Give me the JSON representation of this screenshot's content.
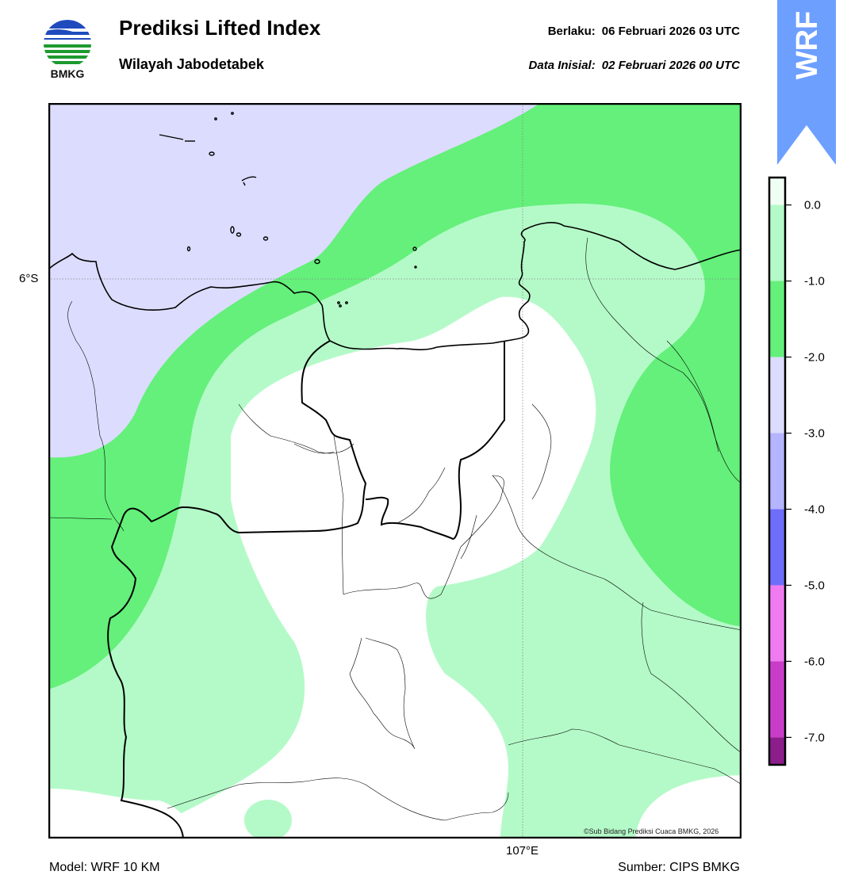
{
  "header": {
    "logo_text": "BMKG",
    "title": "Prediksi Lifted Index",
    "subtitle": "Wilayah Jabodetabek",
    "valid_label": "Berlaku:",
    "valid_value": "06 Februari 2026 03 UTC",
    "init_label": "Data Inisial:",
    "init_value": "02 Februari 2026 00 UTC"
  },
  "ribbon": {
    "text": "WRF",
    "color": "#6d9fff"
  },
  "map": {
    "lat_label": "6°S",
    "lon_label": "107°E",
    "copyright": "©Sub Bidang Prediksi Cuaca BMKG, 2026",
    "fill_colors": {
      "lavender": "#dcdcff",
      "green": "#64f07a",
      "light_green": "#b4fac8",
      "white": "#ffffff"
    }
  },
  "colorbar": {
    "ticks": [
      "0.0",
      "-1.0",
      "-2.0",
      "-3.0",
      "-4.0",
      "-5.0",
      "-6.0",
      "-7.0"
    ],
    "bands": [
      {
        "from": 0.0,
        "to": 0.35,
        "color": "#f0fff4"
      },
      {
        "from": -1.0,
        "to": 0.0,
        "color": "#b4fac8"
      },
      {
        "from": -2.0,
        "to": -1.0,
        "color": "#64f07a"
      },
      {
        "from": -3.0,
        "to": -2.0,
        "color": "#dcdcff"
      },
      {
        "from": -4.0,
        "to": -3.0,
        "color": "#b4b4ff"
      },
      {
        "from": -5.0,
        "to": -4.0,
        "color": "#6e6efa"
      },
      {
        "from": -6.0,
        "to": -5.0,
        "color": "#f07af0"
      },
      {
        "from": -7.0,
        "to": -6.0,
        "color": "#c83cc8"
      },
      {
        "from": -7.35,
        "to": -7.0,
        "color": "#8c1e8c"
      }
    ]
  },
  "footer": {
    "model": "Model: WRF 10 KM",
    "source": "Sumber: CIPS BMKG"
  }
}
